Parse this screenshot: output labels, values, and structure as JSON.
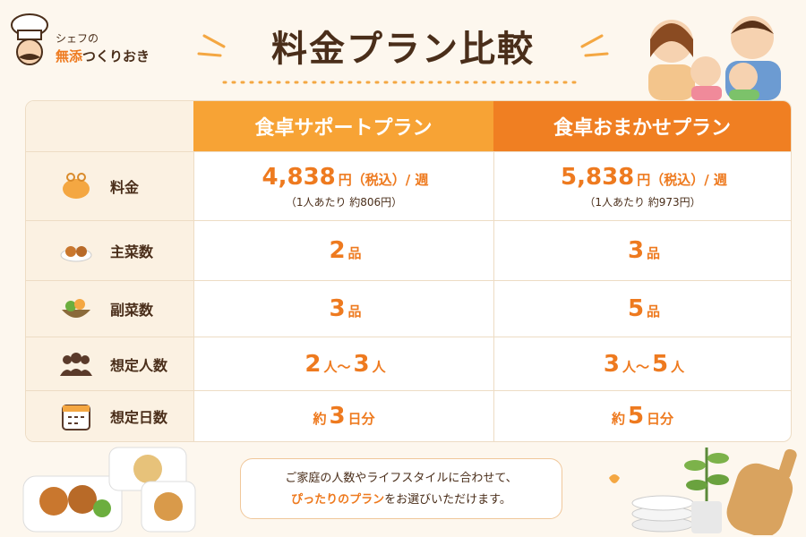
{
  "logo": {
    "top": "シェフの",
    "accent": "無添",
    "rest": "つくりおき"
  },
  "title": "料金プラン比較",
  "table": {
    "headers": [
      "食卓サポートプラン",
      "食卓おまかせプラン"
    ],
    "rows": [
      {
        "label": "料金",
        "cells": [
          {
            "parts": [
              "4,838",
              "円（税込）/ 週"
            ],
            "note": "（1人あたり 約806円）"
          },
          {
            "parts": [
              "5,838",
              "円（税込）/ 週"
            ],
            "note": "（1人あたり 約973円）"
          }
        ]
      },
      {
        "label": "主菜数",
        "cells": [
          {
            "parts": [
              "2",
              "品"
            ]
          },
          {
            "parts": [
              "3",
              "品"
            ]
          }
        ]
      },
      {
        "label": "副菜数",
        "cells": [
          {
            "parts": [
              "3",
              "品"
            ]
          },
          {
            "parts": [
              "5",
              "品"
            ]
          }
        ]
      },
      {
        "label": "想定人数",
        "cells": [
          {
            "parts": [
              "2",
              "人～",
              "3",
              "人"
            ]
          },
          {
            "parts": [
              "3",
              "人～",
              "5",
              "人"
            ]
          }
        ]
      },
      {
        "label": "想定日数",
        "cells": [
          {
            "parts": [
              "約",
              "3",
              "日分"
            ]
          },
          {
            "parts": [
              "約",
              "5",
              "日分"
            ]
          }
        ]
      }
    ]
  },
  "bubble": {
    "line1": "ご家庭の人数やライフスタイルに合わせて、",
    "highlight": "ぴったりのプラン",
    "line2": "をお選びいただけます。"
  }
}
